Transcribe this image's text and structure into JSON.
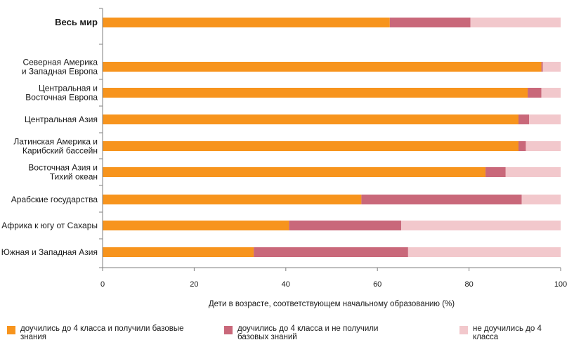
{
  "chart_data": {
    "type": "bar",
    "orientation": "horizontal",
    "stacked": true,
    "xlabel": "Дети в возрасте, соответствующем начальному образованию (%)",
    "ylabel": "",
    "xlim": [
      0,
      100
    ],
    "x_ticks": [
      "0",
      "20",
      "40",
      "60",
      "80",
      "100"
    ],
    "grid": false,
    "legend_position": "bottom",
    "categories": [
      "Весь мир",
      "Северная Америка\nи Западная Европа",
      "Центральная и\nВосточная Европа",
      "Центральная Азия",
      "Латинская Америка и\nКарибский бассейн",
      "Восточная Азия и\nТихий океан",
      "Арабские государства",
      "Африка к югу от Сахары",
      "Южная и Западная Азия"
    ],
    "series": [
      {
        "name": "доучились до 4 класса и получили базовые знания",
        "color": "#f7941d",
        "values": [
          62.7,
          95.8,
          92.8,
          90.8,
          90.8,
          83.6,
          56.5,
          40.7,
          33.0
        ]
      },
      {
        "name": "доучились до 4 класса и не получили базовых знаний",
        "color": "#c9687a",
        "values": [
          17.6,
          0.3,
          3.0,
          2.3,
          1.6,
          4.4,
          35.0,
          24.5,
          33.7
        ]
      },
      {
        "name": "не доучились до 4 класса",
        "color": "#f2c8cc",
        "values": [
          19.7,
          3.9,
          4.2,
          6.9,
          7.6,
          12.0,
          8.5,
          34.8,
          33.3
        ]
      }
    ]
  },
  "legend": [
    {
      "label": "доучились до 4 класса и получили базовые знания",
      "color": "#f7941d"
    },
    {
      "label": "доучились до 4 класса и не получили базовых знаний",
      "color": "#c9687a"
    },
    {
      "label": "не доучились до 4 класса",
      "color": "#f2c8cc"
    }
  ]
}
